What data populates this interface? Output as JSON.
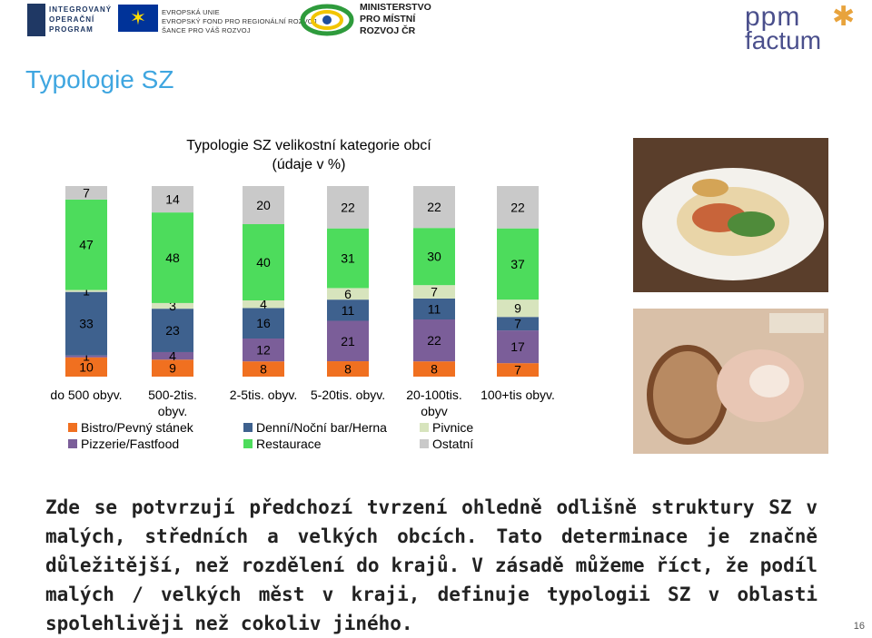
{
  "logos": {
    "iop": [
      "INTEGROVANÝ",
      "OPERAČNÍ",
      "PROGRAM"
    ],
    "eu": [
      "EVROPSKÁ UNIE",
      "EVROPSKÝ FOND PRO REGIONÁLNÍ ROZVOJ",
      "ŠANCE PRO VÁŠ ROZVOJ"
    ],
    "mmr": [
      "MINISTERSTVO",
      "PRO MÍSTNÍ",
      "ROZVOJ ČR"
    ],
    "ppm": {
      "top": "ppm",
      "bottom": "factum"
    }
  },
  "page_title": "Typologie SZ",
  "body_text": "Zde se potvrzují předchozí tvrzení ohledně odlišně struktury SZ v malých, středních a velkých obcích. Tato determinace je značně důležitější, než rozdělení do krajů. V zásadě můžeme říct, že podíl malých / velkých měst v kraji, definuje typologii SZ v oblasti spolehlivěji než cokoliv jiného.",
  "page_number": "16",
  "chart_data": {
    "type": "bar",
    "stacked": true,
    "title": "Typologie SZ velikostní kategorie obcí (údaje v %)",
    "title_lines": [
      "Typologie SZ velikostní kategorie obcí",
      "(údaje v %)"
    ],
    "categories": [
      [
        "do 500 obyv."
      ],
      [
        "500-2tis.",
        "obyv."
      ],
      [
        "2-5tis. obyv."
      ],
      [
        "5-20tis. obyv."
      ],
      [
        "20-100tis.",
        "obyv"
      ],
      [
        "100+tis obyv."
      ]
    ],
    "series": [
      {
        "name": "Bistro/Pevný stánek",
        "color": "#f07020",
        "values": [
          10,
          9,
          8,
          8,
          8,
          7
        ]
      },
      {
        "name": "Pizzerie/Fastfood",
        "color": "#7b5e99",
        "values": [
          1,
          4,
          12,
          21,
          22,
          17
        ]
      },
      {
        "name": "Denní/Noční bar/Herna",
        "color": "#3e618e",
        "values": [
          33,
          23,
          16,
          11,
          11,
          7
        ]
      },
      {
        "name": "Pivnice",
        "color": "#d7e4bd",
        "values": [
          1,
          3,
          4,
          6,
          7,
          9
        ]
      },
      {
        "name": "Restaurace",
        "color": "#4ddc5c",
        "values": [
          47,
          48,
          40,
          31,
          30,
          37
        ]
      },
      {
        "name": "Ostatní",
        "color": "#c9c9c9",
        "values": [
          7,
          14,
          20,
          22,
          22,
          22
        ]
      }
    ],
    "legend_order": [
      "Bistro/Pevný stánek",
      "Denní/Noční bar/Herna",
      "Pivnice",
      "Pizzerie/Fastfood",
      "Restaurace",
      "Ostatní"
    ],
    "legend_position": "bottom",
    "grid": false,
    "ylim": [
      0,
      100
    ]
  }
}
